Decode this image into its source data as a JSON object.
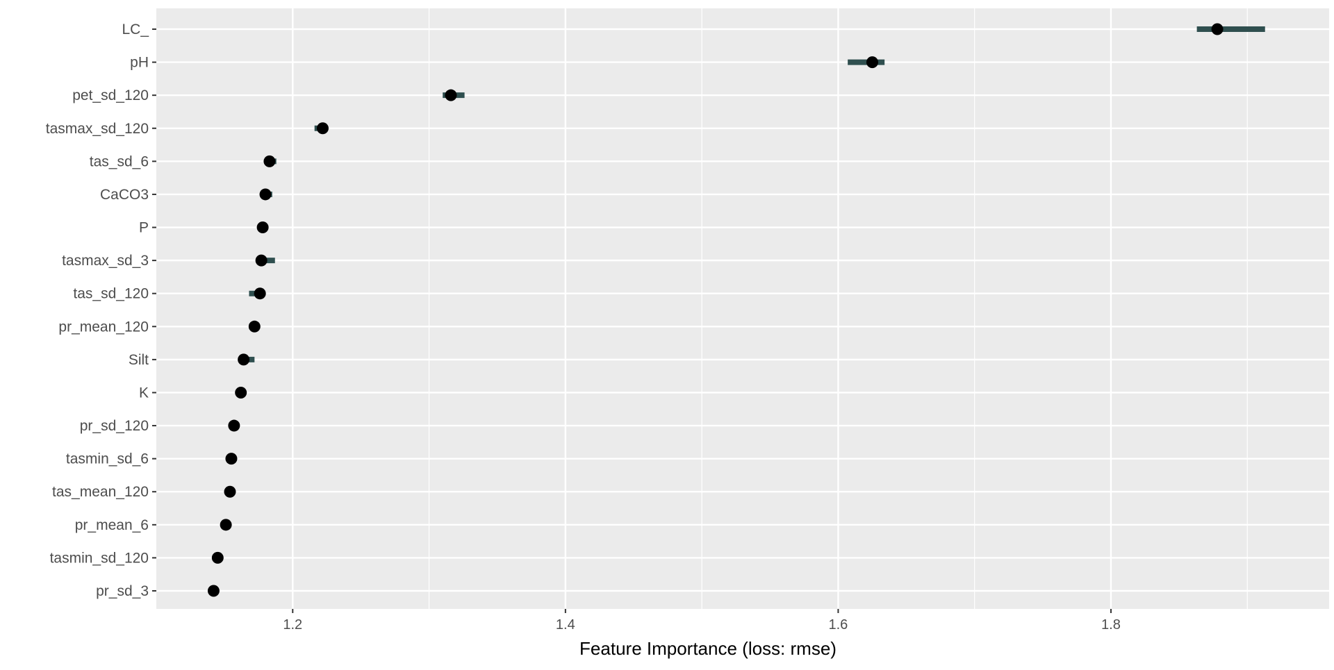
{
  "chart_data": {
    "type": "dot",
    "xlabel": "Feature Importance (loss: rmse)",
    "ylabel": "",
    "xlim": [
      1.1,
      1.96
    ],
    "x_ticks": [
      1.2,
      1.4,
      1.6,
      1.8
    ],
    "x_tick_labels": [
      "1.2",
      "1.4",
      "1.6",
      "1.8"
    ],
    "grid": true,
    "legend": "none",
    "colors": {
      "panel": "#ebebeb",
      "grid": "#ffffff",
      "interval": "#2f4f4f",
      "point": "#000000"
    },
    "features": [
      {
        "name": "LC_",
        "importance": 1.878,
        "low": 1.863,
        "high": 1.913
      },
      {
        "name": "pH",
        "importance": 1.625,
        "low": 1.607,
        "high": 1.634
      },
      {
        "name": "pet_sd_120",
        "importance": 1.316,
        "low": 1.31,
        "high": 1.326
      },
      {
        "name": "tasmax_sd_120",
        "importance": 1.222,
        "low": 1.216,
        "high": 1.224
      },
      {
        "name": "tas_sd_6",
        "importance": 1.183,
        "low": 1.183,
        "high": 1.188
      },
      {
        "name": "CaCO3",
        "importance": 1.18,
        "low": 1.18,
        "high": 1.185
      },
      {
        "name": "P",
        "importance": 1.178,
        "low": 1.178,
        "high": 1.179
      },
      {
        "name": "tasmax_sd_3",
        "importance": 1.177,
        "low": 1.177,
        "high": 1.187
      },
      {
        "name": "tas_sd_120",
        "importance": 1.176,
        "low": 1.168,
        "high": 1.176
      },
      {
        "name": "pr_mean_120",
        "importance": 1.172,
        "low": 1.168,
        "high": 1.172
      },
      {
        "name": "Silt",
        "importance": 1.164,
        "low": 1.164,
        "high": 1.172
      },
      {
        "name": "K",
        "importance": 1.162,
        "low": 1.16,
        "high": 1.165
      },
      {
        "name": "pr_sd_120",
        "importance": 1.157,
        "low": 1.157,
        "high": 1.158
      },
      {
        "name": "tasmin_sd_6",
        "importance": 1.155,
        "low": 1.155,
        "high": 1.156
      },
      {
        "name": "tas_mean_120",
        "importance": 1.154,
        "low": 1.154,
        "high": 1.155
      },
      {
        "name": "pr_mean_6",
        "importance": 1.151,
        "low": 1.151,
        "high": 1.152
      },
      {
        "name": "tasmin_sd_120",
        "importance": 1.145,
        "low": 1.145,
        "high": 1.146
      },
      {
        "name": "pr_sd_3",
        "importance": 1.142,
        "low": 1.142,
        "high": 1.143
      }
    ]
  }
}
